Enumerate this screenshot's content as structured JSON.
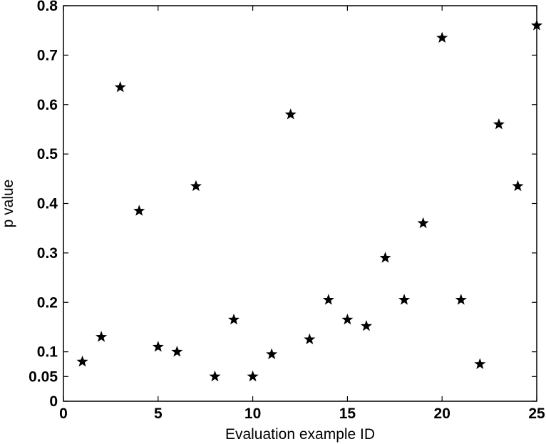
{
  "chart_data": {
    "type": "scatter",
    "title": "",
    "xlabel": "Evaluation example ID",
    "ylabel": "p value",
    "xlim": [
      0,
      25
    ],
    "ylim": [
      0,
      0.8
    ],
    "grid": false,
    "x_ticks": [
      0,
      5,
      10,
      15,
      20,
      25
    ],
    "x_tick_labels": [
      "0",
      "5",
      "10",
      "15",
      "20",
      "25"
    ],
    "y_ticks": [
      0,
      0.05,
      0.1,
      0.2,
      0.3,
      0.4,
      0.5,
      0.6,
      0.7,
      0.8
    ],
    "y_tick_labels": [
      "0",
      "0.05",
      "0.1",
      "0.2",
      "0.3",
      "0.4",
      "0.5",
      "0.6",
      "0.7",
      "0.8"
    ],
    "marker": "star",
    "marker_color": "#000000",
    "series": [
      {
        "x": [
          1,
          2,
          3,
          4,
          5,
          6,
          7,
          8,
          9,
          10,
          11,
          12,
          13,
          14,
          15,
          16,
          17,
          18,
          19,
          20,
          21,
          22,
          23,
          24,
          25
        ],
        "y": [
          0.08,
          0.13,
          0.635,
          0.385,
          0.11,
          0.1,
          0.435,
          0.05,
          0.165,
          0.05,
          0.095,
          0.58,
          0.125,
          0.205,
          0.165,
          0.152,
          0.29,
          0.205,
          0.36,
          0.735,
          0.205,
          0.075,
          0.56,
          0.435,
          0.76
        ]
      }
    ]
  }
}
